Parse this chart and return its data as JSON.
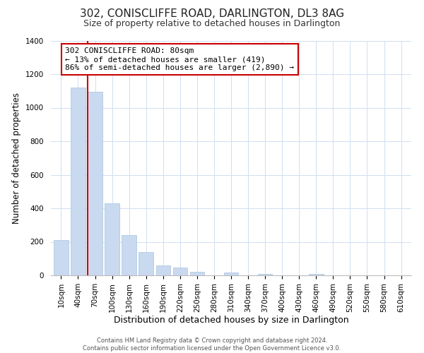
{
  "title": "302, CONISCLIFFE ROAD, DARLINGTON, DL3 8AG",
  "subtitle": "Size of property relative to detached houses in Darlington",
  "xlabel": "Distribution of detached houses by size in Darlington",
  "ylabel": "Number of detached properties",
  "bar_labels": [
    "10sqm",
    "40sqm",
    "70sqm",
    "100sqm",
    "130sqm",
    "160sqm",
    "190sqm",
    "220sqm",
    "250sqm",
    "280sqm",
    "310sqm",
    "340sqm",
    "370sqm",
    "400sqm",
    "430sqm",
    "460sqm",
    "490sqm",
    "520sqm",
    "550sqm",
    "580sqm",
    "610sqm"
  ],
  "bar_values": [
    210,
    1120,
    1095,
    430,
    240,
    140,
    60,
    45,
    20,
    0,
    15,
    0,
    10,
    0,
    0,
    10,
    0,
    0,
    0,
    0,
    0
  ],
  "bar_color": "#c9d9f0",
  "bar_edge_color": "#a8c4e0",
  "vline_color": "#cc0000",
  "vline_x_index": 2,
  "ylim": [
    0,
    1400
  ],
  "yticks": [
    0,
    200,
    400,
    600,
    800,
    1000,
    1200,
    1400
  ],
  "annotation_title": "302 CONISCLIFFE ROAD: 80sqm",
  "annotation_line1": "← 13% of detached houses are smaller (419)",
  "annotation_line2": "86% of semi-detached houses are larger (2,890) →",
  "annotation_box_color": "#ffffff",
  "annotation_box_edge": "#cc0000",
  "footer1": "Contains HM Land Registry data © Crown copyright and database right 2024.",
  "footer2": "Contains public sector information licensed under the Open Government Licence v3.0.",
  "bg_color": "#ffffff",
  "grid_color": "#d0dff0",
  "title_fontsize": 11,
  "subtitle_fontsize": 9,
  "xlabel_fontsize": 9,
  "ylabel_fontsize": 8.5,
  "tick_fontsize": 7.5,
  "ann_fontsize": 8,
  "footer_fontsize": 6
}
